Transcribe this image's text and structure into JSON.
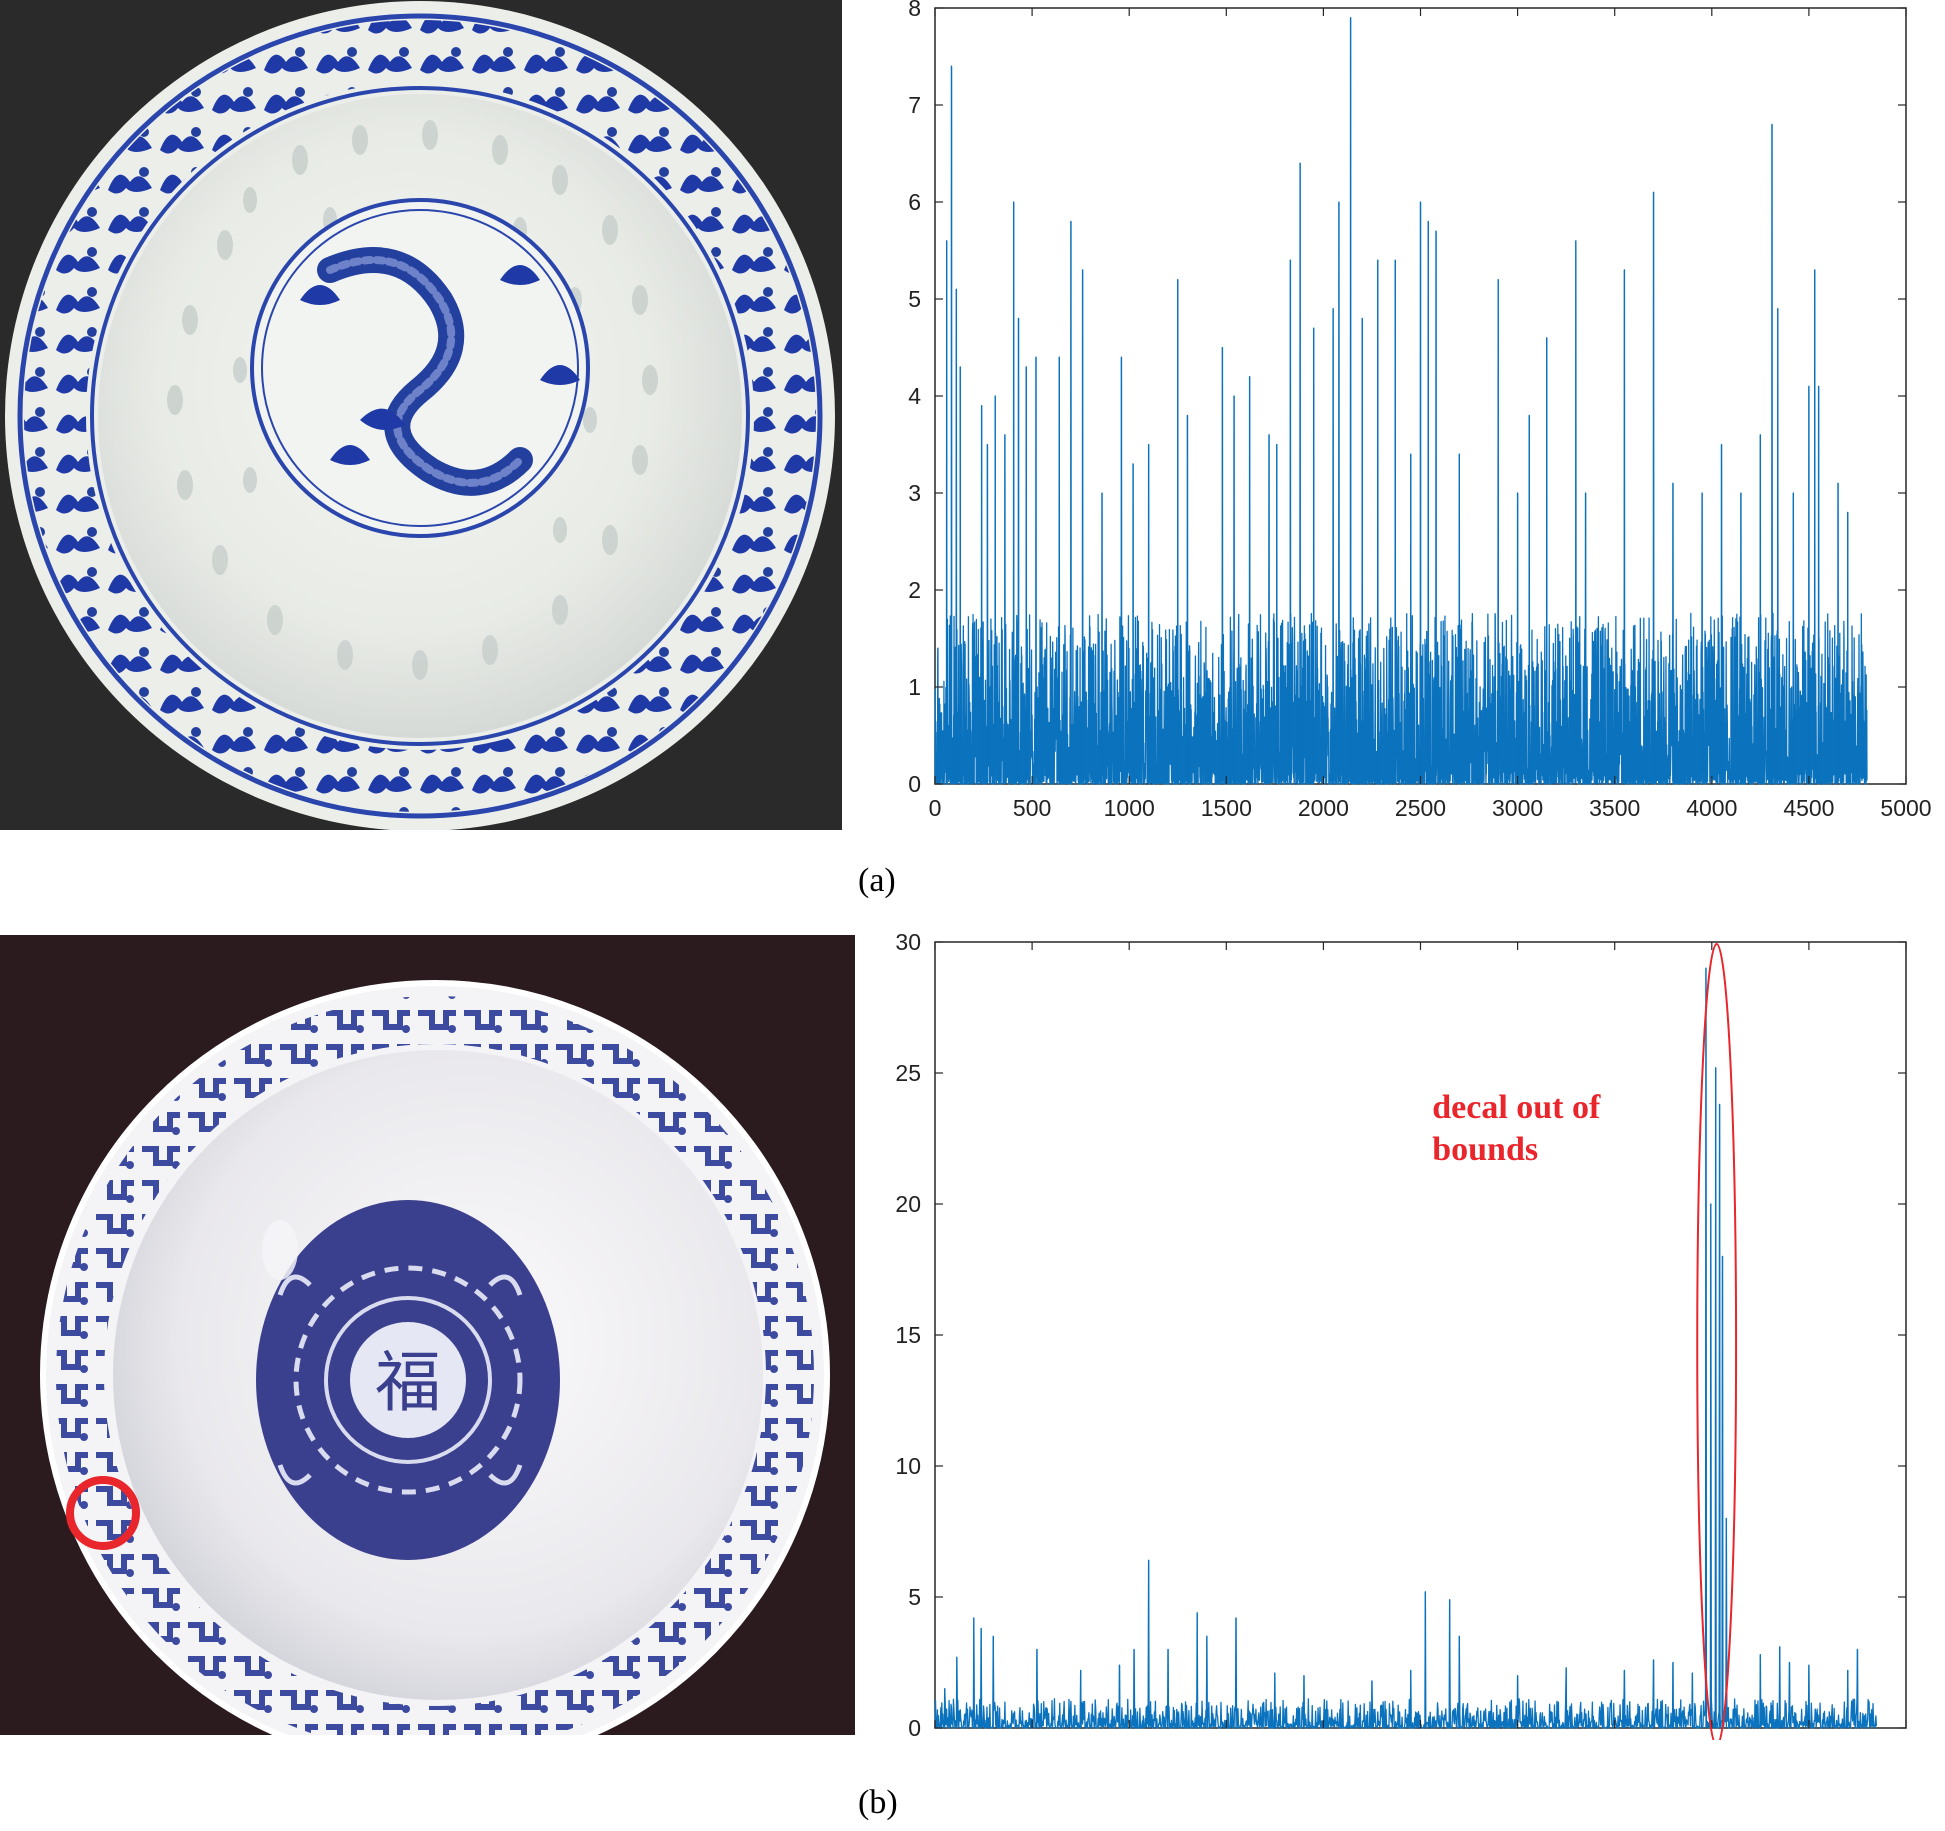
{
  "captions": {
    "a": "(a)",
    "b": "(b)"
  },
  "colors": {
    "series": "#0b72bd",
    "annotation": "#e8262b",
    "bowl_blue": "#1f3aa6",
    "photo_bg_a": "#2a2a2a",
    "photo_bg_b": "#2b1b1e"
  },
  "photos": {
    "a": {
      "subject": "blue-and-white rice-grain porcelain bowl with dragon medallion"
    },
    "b": {
      "subject": "blue-and-white porcelain bowl with central medallion",
      "glyph": "福",
      "defect_marker": "red circle on rim"
    }
  },
  "chart_data": [
    {
      "id": "a",
      "type": "line",
      "title": "",
      "xlabel": "",
      "ylabel": "",
      "xlim": [
        0,
        5000
      ],
      "ylim": [
        0,
        8
      ],
      "xticks": [
        0,
        500,
        1000,
        1500,
        2000,
        2500,
        3000,
        3500,
        4000,
        4500,
        5000
      ],
      "yticks": [
        0,
        1,
        2,
        3,
        4,
        5,
        6,
        7,
        8
      ],
      "grid": false,
      "series_length": 4800,
      "peaks": [
        [
          15,
          1.4
        ],
        [
          60,
          5.6
        ],
        [
          85,
          7.4
        ],
        [
          110,
          5.1
        ],
        [
          130,
          4.3
        ],
        [
          240,
          3.9
        ],
        [
          270,
          3.5
        ],
        [
          310,
          4.0
        ],
        [
          360,
          3.6
        ],
        [
          405,
          6.0
        ],
        [
          430,
          4.8
        ],
        [
          470,
          4.3
        ],
        [
          520,
          4.4
        ],
        [
          640,
          4.4
        ],
        [
          700,
          5.8
        ],
        [
          760,
          5.3
        ],
        [
          860,
          3.0
        ],
        [
          960,
          4.4
        ],
        [
          1020,
          3.3
        ],
        [
          1100,
          3.5
        ],
        [
          1250,
          5.2
        ],
        [
          1300,
          3.8
        ],
        [
          1480,
          4.5
        ],
        [
          1540,
          4.0
        ],
        [
          1620,
          4.2
        ],
        [
          1720,
          3.6
        ],
        [
          1760,
          3.5
        ],
        [
          1830,
          5.4
        ],
        [
          1880,
          6.4
        ],
        [
          1950,
          4.7
        ],
        [
          2050,
          4.9
        ],
        [
          2080,
          6.0
        ],
        [
          2140,
          7.9
        ],
        [
          2200,
          4.8
        ],
        [
          2280,
          5.4
        ],
        [
          2370,
          5.4
        ],
        [
          2450,
          3.4
        ],
        [
          2500,
          6.0
        ],
        [
          2540,
          5.8
        ],
        [
          2580,
          5.7
        ],
        [
          2700,
          3.4
        ],
        [
          2900,
          5.2
        ],
        [
          3000,
          3.0
        ],
        [
          3060,
          3.8
        ],
        [
          3150,
          4.6
        ],
        [
          3300,
          5.6
        ],
        [
          3350,
          3.0
        ],
        [
          3550,
          5.3
        ],
        [
          3700,
          6.1
        ],
        [
          3800,
          3.1
        ],
        [
          3950,
          3.0
        ],
        [
          4050,
          3.5
        ],
        [
          4150,
          3.0
        ],
        [
          4250,
          3.6
        ],
        [
          4310,
          6.8
        ],
        [
          4340,
          4.9
        ],
        [
          4420,
          3.0
        ],
        [
          4500,
          4.1
        ],
        [
          4530,
          5.3
        ],
        [
          4550,
          4.1
        ],
        [
          4650,
          3.1
        ],
        [
          4700,
          2.8
        ]
      ],
      "noise_level": 1.1
    },
    {
      "id": "b",
      "type": "line",
      "title": "",
      "xlabel": "",
      "ylabel": "",
      "xlim": [
        0,
        2000
      ],
      "ylim": [
        0,
        30
      ],
      "xticks": [
        0,
        200,
        400,
        600,
        800,
        1000,
        1200,
        1400,
        1600,
        1800,
        2000
      ],
      "yticks": [
        0,
        5,
        10,
        15,
        20,
        25,
        30
      ],
      "grid": false,
      "series_length": 1940,
      "peaks": [
        [
          20,
          1.5
        ],
        [
          45,
          2.7
        ],
        [
          80,
          4.2
        ],
        [
          95,
          3.8
        ],
        [
          120,
          3.5
        ],
        [
          210,
          3.0
        ],
        [
          300,
          2.2
        ],
        [
          380,
          2.4
        ],
        [
          410,
          3.0
        ],
        [
          440,
          6.4
        ],
        [
          480,
          3.0
        ],
        [
          540,
          4.4
        ],
        [
          560,
          3.5
        ],
        [
          620,
          4.2
        ],
        [
          700,
          2.1
        ],
        [
          760,
          2.0
        ],
        [
          900,
          1.8
        ],
        [
          980,
          2.2
        ],
        [
          1010,
          5.2
        ],
        [
          1060,
          4.9
        ],
        [
          1080,
          3.5
        ],
        [
          1200,
          2.0
        ],
        [
          1300,
          2.3
        ],
        [
          1420,
          2.2
        ],
        [
          1480,
          2.6
        ],
        [
          1520,
          2.5
        ],
        [
          1560,
          2.1
        ],
        [
          1588,
          29.0
        ],
        [
          1598,
          20.0
        ],
        [
          1608,
          25.2
        ],
        [
          1616,
          23.8
        ],
        [
          1622,
          18.0
        ],
        [
          1630,
          8.0
        ],
        [
          1700,
          2.8
        ],
        [
          1740,
          3.1
        ],
        [
          1760,
          2.5
        ],
        [
          1800,
          2.4
        ],
        [
          1880,
          2.2
        ],
        [
          1900,
          3.0
        ]
      ],
      "noise_level": 0.7,
      "annotation": {
        "lines": [
          "decal out of",
          "bounds"
        ],
        "highlight_x_range": [
          1570,
          1650
        ]
      }
    }
  ]
}
